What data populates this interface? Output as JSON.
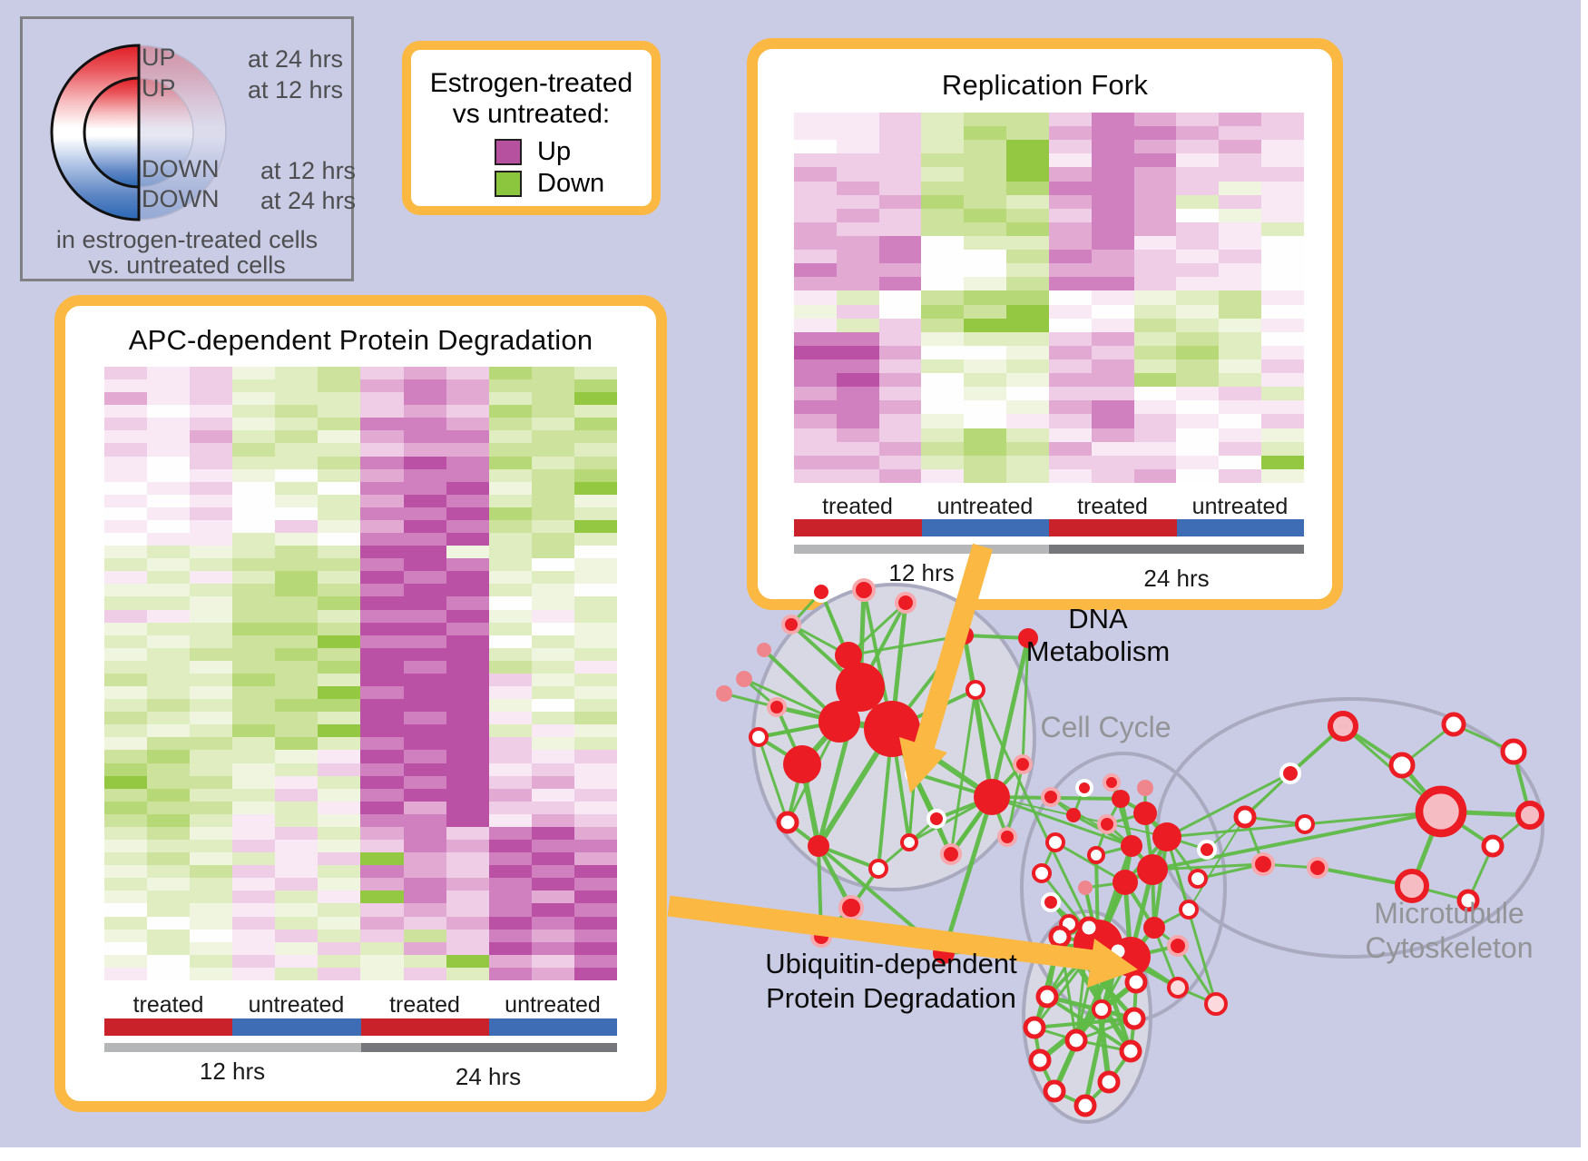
{
  "colors": {
    "canvas": "#cacbe4",
    "orange": "#fbb843",
    "bar_red": "#c9222b",
    "bar_blue": "#3f6db5",
    "gray_light": "#b5b6b8",
    "gray_dark": "#76777a",
    "node_red": "#ec1c24",
    "edge_green": "#5fbb46",
    "cluster_fill": "#d8d8e5",
    "cluster_stroke": "#a9aabf",
    "label_gray": "#929497",
    "corner_text": "#4d4e50",
    "heat_zero": "#fefefe",
    "heat_magenta": [
      "#f9e9f4",
      "#f0cde6",
      "#e2a9d3",
      "#d080be",
      "#ba51a5"
    ],
    "heat_green": [
      "#eff5de",
      "#e0edc0",
      "#cde39d",
      "#b7d876",
      "#94c843"
    ]
  },
  "corner_legend": {
    "rows": [
      {
        "dir": "UP",
        "time": "at 24 hrs"
      },
      {
        "dir": "UP",
        "time": "at 12 hrs"
      },
      {
        "dir": "DOWN",
        "time": "at 12 hrs"
      },
      {
        "dir": "DOWN",
        "time": "at 24 hrs"
      }
    ],
    "footer_line1": "in estrogen-treated cells",
    "footer_line2": "vs. untreated cells"
  },
  "updown_legend": {
    "title_line1": "Estrogen-treated",
    "title_line2": "vs untreated:",
    "items": [
      {
        "label": "Up",
        "color": "#b5519f"
      },
      {
        "label": "Down",
        "color": "#8cc63f"
      }
    ]
  },
  "network": {
    "clusters": {
      "dna": "DNA Metabolism",
      "cell_cycle": "Cell Cycle",
      "microtubule_line1": "Microtubule",
      "microtubule_line2": "Cytoskeleton",
      "ubiquitin_line1": "Ubiquitin-dependent",
      "ubiquitin_line2": "Protein Degradation"
    }
  },
  "chart_data": [
    {
      "type": "heatmap",
      "title": "Replication Fork",
      "group_labels": [
        "treated",
        "untreated",
        "treated",
        "untreated"
      ],
      "time_labels": [
        "12 hrs",
        "24 hrs"
      ],
      "legend": "magenta = up in estrogen-treated vs untreated, green = down",
      "encoding": "each char = one cell; 0 = no change (white); 1-5 = up/magenta intensity; a-e = down/green intensity",
      "n_cols": 12,
      "rows": [
        "112bcc243232",
        "112bdc344322",
        "012bce243231",
        "222cce144121",
        "322bce343222",
        "232ccd4432a1",
        "223dcb343b21",
        "232cdc2430a1",
        "322ccd34321b",
        "3340bb341210",
        "23400c432120",
        "43300b332210",
        "3340ac442110",
        "1b0cdd01abc1",
        "a20dce10bac0",
        "1b2cee01cba1",
        "442abb23bcb0",
        "55300a32cdb1",
        "442bab23bca2",
        "4530ba33dcb1",
        "3420a022012b",
        "44300a341011",
        "342a01242102",
        "232bdb13201a",
        "223cdc31102b",
        "332bcb22210e",
        "2231cb12302a"
      ]
    },
    {
      "type": "heatmap",
      "title": "APC-dependent Protein Degradation",
      "group_labels": [
        "treated",
        "untreated",
        "treated",
        "untreated"
      ],
      "time_labels": [
        "12 hrs",
        "24 hrs"
      ],
      "legend": "magenta = up in estrogen-treated vs untreated, green = down",
      "encoding": "each char = one cell; 0 = no change (white); 1-5 = up/magenta intensity; a-e = down/green intensity",
      "n_cols": 12,
      "rows": [
        "212abc232dcb",
        "112bbc343ccd",
        "312abb243bce",
        "101bcb232dcb",
        "212abc443cbd",
        "113bca344bcc",
        "212cbb233ccb",
        "102bbc454dbc",
        "101a0b344bcd",
        "0120b0445ace",
        "1010ab354bca",
        "01200b445dcb",
        "10102a354cbe",
        "011ba0445bcb",
        "ababcb55abc0",
        "babccc454b0a",
        "1b1bdb545aba",
        "aabcdc455ba0",
        "bbaccd5540ab",
        "21accb445a1b",
        "abbddc554b0a",
        "babcce4450ba",
        "abccdc555bab",
        "bbaccd545cb1",
        "cbbdcb5552ab",
        "abacce4551ba",
        "bcbcdd555a0b",
        "cbaccb5451bc",
        "babdce555b1a",
        "accbdb4552ab",
        "cdbba1545212",
        "dcbab2455121",
        "ecca1b545231",
        "cdbb2a455312",
        "dccab1535221",
        "cdb1ba445132",
        "bca12b342453",
        "abb21a243544",
        "bcab12e32453",
        "abc21b432545",
        "bab12a343454",
        "abb2b1e42435",
        "0ba1ab232454",
        "b0a2ba323545",
        "ab012b2c2434",
        "0ba1a2b32545",
        "a0b21babe324",
        "10a1b2a2b435"
      ]
    }
  ]
}
